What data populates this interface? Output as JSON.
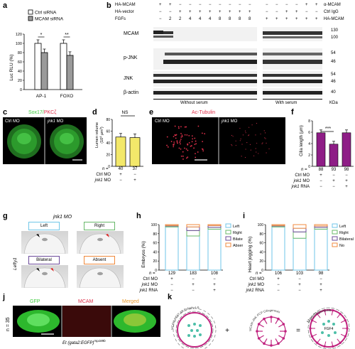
{
  "panel_labels": {
    "a": "a",
    "b": "b",
    "c": "c",
    "d": "d",
    "e": "e",
    "f": "f",
    "g": "g",
    "h": "h",
    "i": "i",
    "j": "j",
    "k": "k"
  },
  "a": {
    "legend": [
      "Ctrl siRNA",
      "MCAM siRNA"
    ],
    "ylabel": "Luc RLU (%)",
    "yticks": [
      "0",
      "20",
      "40",
      "60",
      "80",
      "100",
      "120"
    ],
    "signif": [
      "*",
      "**"
    ],
    "colors": {
      "ctrl": "#ffffff",
      "mcam": "#9a9a9a"
    }
  },
  "b": {
    "rows_left": [
      {
        "label": "HA-MCAM",
        "vals": [
          "+",
          "+",
          "−",
          "−",
          "−",
          "−",
          "−",
          "−",
          "−",
          "−"
        ]
      },
      {
        "label": "HA-vector",
        "vals": [
          "−",
          "−",
          "+",
          "+",
          "+",
          "+",
          "+",
          "+",
          "+",
          "+"
        ]
      },
      {
        "label": "FGFs",
        "vals": [
          "−",
          "2",
          "2",
          "4",
          "4",
          "4",
          "8",
          "8",
          "8",
          "8"
        ]
      }
    ],
    "rows_right": [
      {
        "label": "α-MCAM",
        "vals": [
          "−",
          "−",
          "−",
          "−",
          "+",
          "+"
        ]
      },
      {
        "label": "Ctrl IgG",
        "vals": [
          "−",
          "−",
          "+",
          "+",
          "−",
          "−"
        ]
      },
      {
        "label": "HA-MCAM",
        "vals": [
          "+",
          "+",
          "+",
          "+",
          "+",
          "+"
        ]
      }
    ],
    "blots": [
      {
        "label": "MCAM",
        "mw": [
          "130",
          "100"
        ]
      },
      {
        "label": "p-JNK",
        "mw": [
          "54",
          "46"
        ]
      },
      {
        "label": "JNK",
        "mw": [
          "54",
          "46"
        ]
      },
      {
        "label": "β-actin",
        "mw": [
          "40"
        ]
      }
    ],
    "footer": {
      "left": "Without serum",
      "right": "With serum",
      "unit": "KDa"
    }
  },
  "c": {
    "title_a": "Sox17",
    "title_sep": "/",
    "title_b": "PKCζ",
    "ctrl": "Ctrl MO",
    "jnk": "jnk1",
    "mo": " MO"
  },
  "d": {
    "ylabel_1": "Lumen volume",
    "ylabel_2": "(10",
    "ylabel_exp": "4",
    "ylabel_3": " μm",
    "ylabel_exp2": "3",
    "ylabel_4": ")",
    "yticks": [
      "0",
      "20",
      "40",
      "60",
      "80"
    ],
    "ns": "NS",
    "n_label": "n =",
    "n": [
      "40",
      "37"
    ],
    "rows": [
      {
        "label": "Ctrl MO",
        "vals": [
          "+",
          "−"
        ]
      },
      {
        "label": "jnk1",
        "label_suffix": " MO",
        "vals": [
          "−",
          "+"
        ]
      }
    ],
    "color": "#f3e86a"
  },
  "e": {
    "title": "Ac-Tubulin",
    "ctrl": "Ctrl MO",
    "jnk": "jnk1",
    "mo": " MO"
  },
  "f": {
    "ylabel": "Cilia length (μm)",
    "yticks": [
      "0",
      "2",
      "4",
      "6",
      "8"
    ],
    "signif": "***",
    "n_label": "n =",
    "n": [
      "88",
      "93",
      "98"
    ],
    "rows": [
      {
        "label": "Ctrl MO",
        "vals": [
          "+",
          "−",
          "−"
        ]
      },
      {
        "label": "jnk1",
        "label_suffix": " MO",
        "vals": [
          "−",
          "+",
          "+"
        ]
      },
      {
        "label": "jnk1",
        "label_suffix": " RNA",
        "vals": [
          "−",
          "−",
          "+"
        ]
      }
    ],
    "color": "#8e1d86"
  },
  "g": {
    "title": "jnk1 MO",
    "side": "Lefty1",
    "boxes": [
      "Left",
      "Right",
      "Bilateral",
      "Absent"
    ]
  },
  "h": {
    "ylabel": "Embryos (%)",
    "yticks": [
      "0",
      "20",
      "40",
      "60",
      "80",
      "100"
    ],
    "legend": [
      "Left",
      "Right",
      "Bilateral",
      "Absent"
    ],
    "n_label": "n =",
    "n": [
      "129",
      "183",
      "108"
    ],
    "rows": [
      {
        "label": "Ctrl MO",
        "vals": [
          "+",
          "−",
          "−"
        ]
      },
      {
        "label": "jnk1",
        "label_suffix": " MO",
        "vals": [
          "−",
          "+",
          "+"
        ]
      },
      {
        "label": "jnk1",
        "label_suffix": " RNA",
        "vals": [
          "−",
          "−",
          "+"
        ]
      }
    ]
  },
  "i": {
    "ylabel": "Heart jogging (%)",
    "yticks": [
      "0",
      "20",
      "40",
      "60",
      "80",
      "100"
    ],
    "legend": [
      "Left",
      "Right",
      "Bilateral",
      "No"
    ],
    "n_label": "n =",
    "n": [
      "106",
      "103",
      "98"
    ],
    "rows": [
      {
        "label": "Ctrl MO",
        "vals": [
          "+",
          "−",
          "−"
        ]
      },
      {
        "label": "jnk1",
        "label_suffix": " MO",
        "vals": [
          "−",
          "+",
          "+"
        ]
      },
      {
        "label": "jnk1",
        "label_suffix": " RNA",
        "vals": [
          "−",
          "−",
          "+"
        ]
      }
    ]
  },
  "j": {
    "n_side": "n = 35",
    "titles": [
      "GFP",
      "MCAM",
      "Merged"
    ],
    "caption_a": "Et (gata2:EGFP)",
    "caption_sup": "mp189b"
  },
  "k": {
    "arc1": "MCAM-HFAT-AB Polarity-LR",
    "arc2": "MCAM-JNK-PCP Ciliogenesis",
    "center": "FGF4",
    "right": "Morphogenesis",
    "plus": "+",
    "equals": "="
  },
  "colors": {
    "left": "#6fc6e8",
    "right": "#68b86a",
    "bilateral": "#6b4a9a",
    "absent": "#f08a3c",
    "green": "#3dcb3d",
    "red": "#e0304a",
    "magenta": "#c0237f"
  },
  "chart_data": [
    {
      "type": "bar",
      "panel": "a",
      "categories": [
        "AP-1",
        "FOXO"
      ],
      "series": [
        {
          "name": "Ctrl siRNA",
          "values": [
            100,
            100
          ]
        },
        {
          "name": "MCAM siRNA",
          "values": [
            80,
            74
          ]
        }
      ],
      "ylabel": "Luc RLU (%)",
      "ylim": [
        0,
        120
      ]
    },
    {
      "type": "bar",
      "panel": "d",
      "categories": [
        "Ctrl MO",
        "jnk1 MO"
      ],
      "values": [
        50,
        49
      ],
      "ylim": [
        0,
        80
      ]
    },
    {
      "type": "bar",
      "panel": "f",
      "categories": [
        "Ctrl MO",
        "jnk1 MO",
        "jnk1 MO + RNA"
      ],
      "values": [
        5.9,
        3.9,
        5.9
      ],
      "ylabel": "Cilia length (μm)",
      "ylim": [
        0,
        8
      ]
    },
    {
      "type": "bar",
      "panel": "h",
      "stacked": true,
      "categories": [
        "129",
        "183",
        "108"
      ],
      "series": [
        {
          "name": "Left",
          "values": [
            95,
            75,
            90
          ]
        },
        {
          "name": "Right",
          "values": [
            2,
            12,
            4
          ]
        },
        {
          "name": "Bilateral",
          "values": [
            1,
            8,
            4
          ]
        },
        {
          "name": "Absent",
          "values": [
            2,
            5,
            2
          ]
        }
      ],
      "ylabel": "Embryos (%)",
      "ylim": [
        0,
        100
      ]
    },
    {
      "type": "bar",
      "panel": "i",
      "stacked": true,
      "categories": [
        "106",
        "103",
        "98"
      ],
      "series": [
        {
          "name": "Left",
          "values": [
            95,
            70,
            90
          ]
        },
        {
          "name": "Right",
          "values": [
            2,
            14,
            4
          ]
        },
        {
          "name": "Bilateral",
          "values": [
            1,
            8,
            3
          ]
        },
        {
          "name": "No",
          "values": [
            2,
            8,
            3
          ]
        }
      ],
      "ylabel": "Heart jogging (%)",
      "ylim": [
        0,
        100
      ]
    }
  ]
}
